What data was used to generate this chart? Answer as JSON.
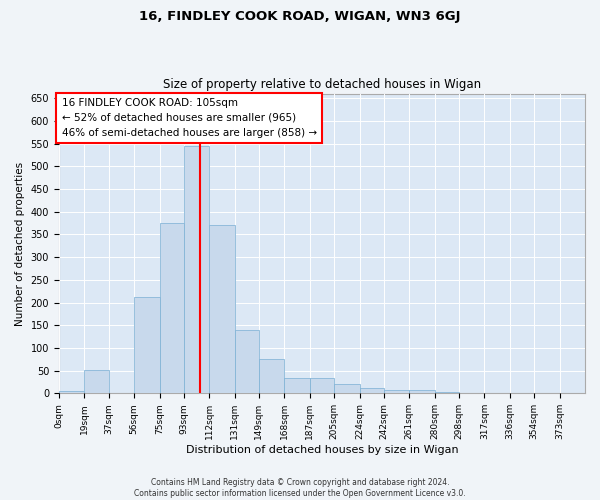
{
  "title": "16, FINDLEY COOK ROAD, WIGAN, WN3 6GJ",
  "subtitle": "Size of property relative to detached houses in Wigan",
  "xlabel": "Distribution of detached houses by size in Wigan",
  "ylabel": "Number of detached properties",
  "bar_color": "#c8d9ec",
  "bar_edge_color": "#7aafd4",
  "background_color": "#dce8f5",
  "fig_background_color": "#f0f4f8",
  "grid_color": "#ffffff",
  "bin_labels": [
    "0sqm",
    "19sqm",
    "37sqm",
    "56sqm",
    "75sqm",
    "93sqm",
    "112sqm",
    "131sqm",
    "149sqm",
    "168sqm",
    "187sqm",
    "205sqm",
    "224sqm",
    "242sqm",
    "261sqm",
    "280sqm",
    "298sqm",
    "317sqm",
    "336sqm",
    "354sqm",
    "373sqm"
  ],
  "bar_heights": [
    5,
    52,
    0,
    213,
    375,
    545,
    370,
    140,
    75,
    33,
    33,
    20,
    12,
    8,
    8,
    3,
    0,
    0,
    0,
    0,
    0
  ],
  "red_line_x": 105,
  "bin_edges": [
    0,
    19,
    37,
    56,
    75,
    93,
    112,
    131,
    149,
    168,
    187,
    205,
    224,
    242,
    261,
    280,
    298,
    317,
    336,
    354,
    373,
    392
  ],
  "ylim": [
    0,
    660
  ],
  "yticks": [
    0,
    50,
    100,
    150,
    200,
    250,
    300,
    350,
    400,
    450,
    500,
    550,
    600,
    650
  ],
  "annotation_line1": "16 FINDLEY COOK ROAD: 105sqm",
  "annotation_line2": "← 52% of detached houses are smaller (965)",
  "annotation_line3": "46% of semi-detached houses are larger (858) →",
  "footer_line1": "Contains HM Land Registry data © Crown copyright and database right 2024.",
  "footer_line2": "Contains public sector information licensed under the Open Government Licence v3.0."
}
